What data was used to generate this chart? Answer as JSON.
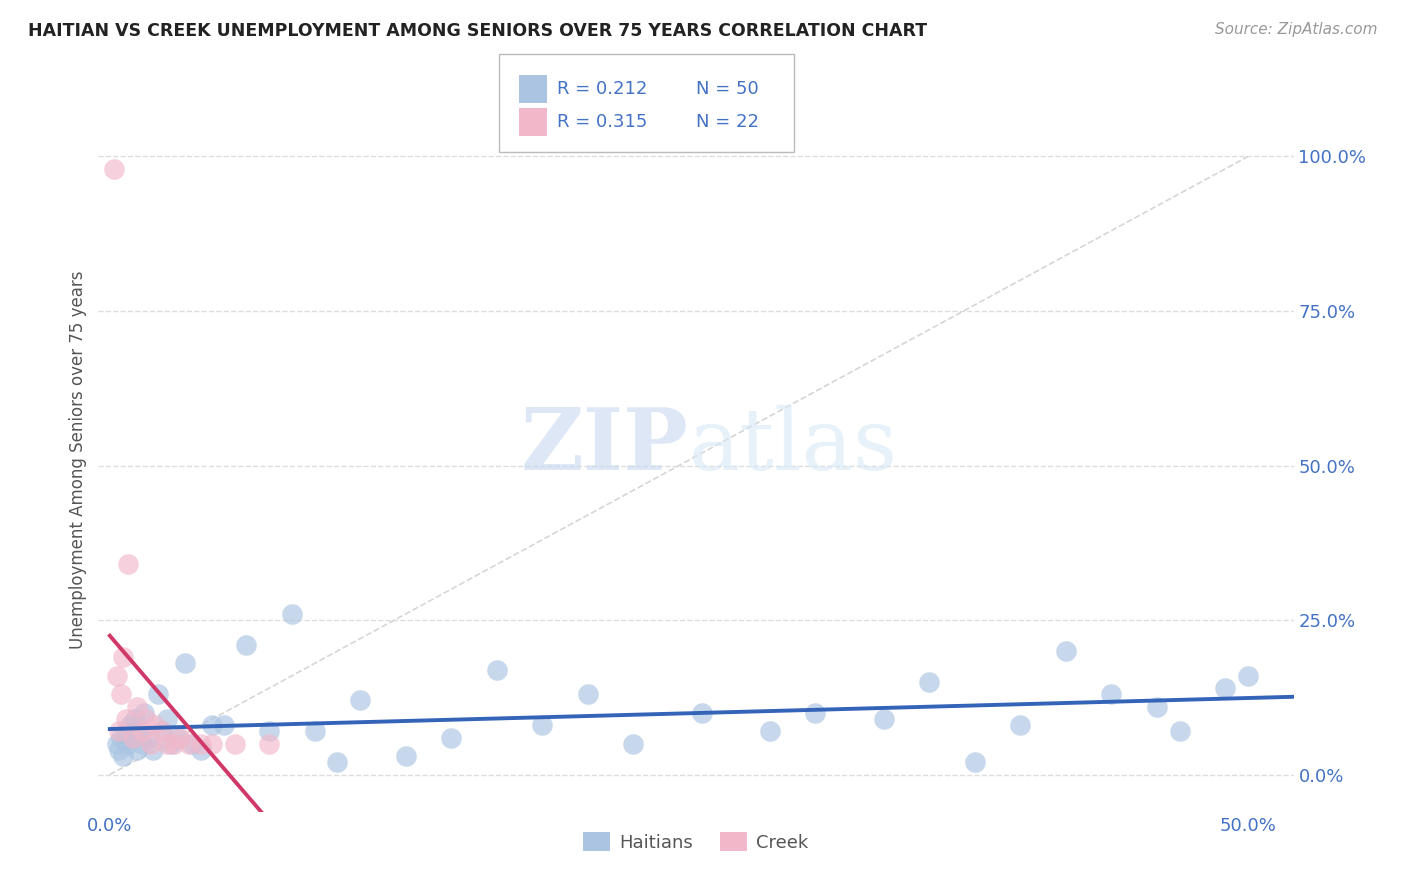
{
  "title": "HAITIAN VS CREEK UNEMPLOYMENT AMONG SENIORS OVER 75 YEARS CORRELATION CHART",
  "source": "Source: ZipAtlas.com",
  "ylabel": "Unemployment Among Seniors over 75 years",
  "yticks": [
    "0.0%",
    "25.0%",
    "50.0%",
    "75.0%",
    "100.0%"
  ],
  "ytick_vals": [
    0.0,
    0.25,
    0.5,
    0.75,
    1.0
  ],
  "xtick_labels": [
    "0.0%",
    "50.0%"
  ],
  "xtick_vals": [
    0.0,
    0.5
  ],
  "xrange": [
    -0.005,
    0.52
  ],
  "yrange": [
    -0.06,
    1.08
  ],
  "legend_r_haitian": "R = 0.212",
  "legend_n_haitian": "N = 50",
  "legend_r_creek": "R = 0.315",
  "legend_n_creek": "N = 22",
  "color_haitian": "#aac4e2",
  "color_creek": "#f2b8ca",
  "color_haitian_line": "#3464b8",
  "color_creek_line": "#d03868",
  "color_blue_text": "#4472c4",
  "color_pink_text": "#d03868",
  "color_axis_labels": "#4472c4",
  "watermark_zip": "ZIP",
  "watermark_atlas": "atlas",
  "background_color": "#ffffff",
  "grid_color": "#dddddd",
  "haitian_x": [
    0.003,
    0.004,
    0.005,
    0.006,
    0.007,
    0.008,
    0.009,
    0.01,
    0.011,
    0.012,
    0.013,
    0.014,
    0.015,
    0.017,
    0.019,
    0.021,
    0.023,
    0.025,
    0.027,
    0.03,
    0.033,
    0.036,
    0.04,
    0.045,
    0.05,
    0.06,
    0.07,
    0.08,
    0.09,
    0.1,
    0.11,
    0.13,
    0.15,
    0.17,
    0.19,
    0.21,
    0.23,
    0.26,
    0.29,
    0.31,
    0.34,
    0.36,
    0.38,
    0.4,
    0.42,
    0.44,
    0.46,
    0.47,
    0.49,
    0.5
  ],
  "haitian_y": [
    0.05,
    0.04,
    0.06,
    0.03,
    0.07,
    0.05,
    0.08,
    0.06,
    0.09,
    0.04,
    0.07,
    0.05,
    0.1,
    0.06,
    0.04,
    0.13,
    0.07,
    0.09,
    0.05,
    0.06,
    0.18,
    0.05,
    0.04,
    0.08,
    0.08,
    0.21,
    0.07,
    0.26,
    0.07,
    0.02,
    0.12,
    0.03,
    0.06,
    0.17,
    0.08,
    0.13,
    0.05,
    0.1,
    0.07,
    0.1,
    0.09,
    0.15,
    0.02,
    0.08,
    0.2,
    0.13,
    0.11,
    0.07,
    0.14,
    0.16
  ],
  "creek_x": [
    0.002,
    0.003,
    0.004,
    0.005,
    0.006,
    0.007,
    0.008,
    0.01,
    0.012,
    0.014,
    0.016,
    0.018,
    0.02,
    0.023,
    0.025,
    0.028,
    0.031,
    0.035,
    0.04,
    0.045,
    0.055,
    0.07
  ],
  "creek_y": [
    0.98,
    0.16,
    0.07,
    0.13,
    0.19,
    0.09,
    0.34,
    0.06,
    0.11,
    0.07,
    0.09,
    0.05,
    0.08,
    0.07,
    0.05,
    0.05,
    0.06,
    0.05,
    0.05,
    0.05,
    0.05,
    0.05
  ],
  "ref_line_x": [
    0.0,
    0.5
  ],
  "ref_line_y": [
    0.0,
    1.0
  ]
}
